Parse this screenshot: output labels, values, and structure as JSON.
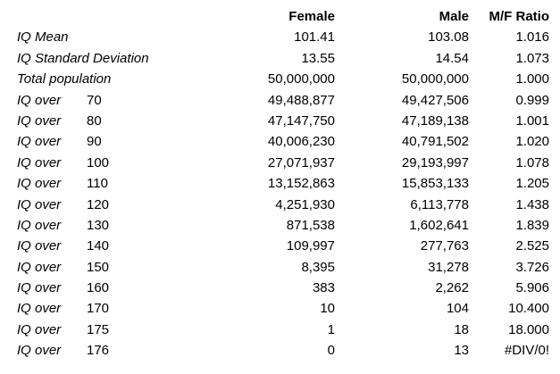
{
  "colors": {
    "text": "#000000",
    "background": "#ffffff"
  },
  "chart_data": {
    "type": "table",
    "column_headers": [
      "Female",
      "Male",
      "M/F Ratio"
    ],
    "row_label_style": "italic",
    "grid": false,
    "rows": [
      {
        "label": "IQ Mean",
        "threshold": "",
        "female": "101.41",
        "male": "103.08",
        "mf_ratio": "1.016"
      },
      {
        "label": "IQ Standard Deviation",
        "threshold": "",
        "female": "13.55",
        "male": "14.54",
        "mf_ratio": "1.073"
      },
      {
        "label": "Total population",
        "threshold": "",
        "female": "50,000,000",
        "male": "50,000,000",
        "mf_ratio": "1.000"
      },
      {
        "label": "IQ over",
        "threshold": "70",
        "female": "49,488,877",
        "male": "49,427,506",
        "mf_ratio": "0.999"
      },
      {
        "label": "IQ over",
        "threshold": "80",
        "female": "47,147,750",
        "male": "47,189,138",
        "mf_ratio": "1.001"
      },
      {
        "label": "IQ over",
        "threshold": "90",
        "female": "40,006,230",
        "male": "40,791,502",
        "mf_ratio": "1.020"
      },
      {
        "label": "IQ over",
        "threshold": "100",
        "female": "27,071,937",
        "male": "29,193,997",
        "mf_ratio": "1.078"
      },
      {
        "label": "IQ over",
        "threshold": "110",
        "female": "13,152,863",
        "male": "15,853,133",
        "mf_ratio": "1.205"
      },
      {
        "label": "IQ over",
        "threshold": "120",
        "female": "4,251,930",
        "male": "6,113,778",
        "mf_ratio": "1.438"
      },
      {
        "label": "IQ over",
        "threshold": "130",
        "female": "871,538",
        "male": "1,602,641",
        "mf_ratio": "1.839"
      },
      {
        "label": "IQ over",
        "threshold": "140",
        "female": "109,997",
        "male": "277,763",
        "mf_ratio": "2.525"
      },
      {
        "label": "IQ over",
        "threshold": "150",
        "female": "8,395",
        "male": "31,278",
        "mf_ratio": "3.726"
      },
      {
        "label": "IQ over",
        "threshold": "160",
        "female": "383",
        "male": "2,262",
        "mf_ratio": "5.906"
      },
      {
        "label": "IQ over",
        "threshold": "170",
        "female": "10",
        "male": "104",
        "mf_ratio": "10.400"
      },
      {
        "label": "IQ over",
        "threshold": "175",
        "female": "1",
        "male": "18",
        "mf_ratio": "18.000"
      },
      {
        "label": "IQ over",
        "threshold": "176",
        "female": "0",
        "male": "13",
        "mf_ratio": "#DIV/0!"
      }
    ]
  }
}
